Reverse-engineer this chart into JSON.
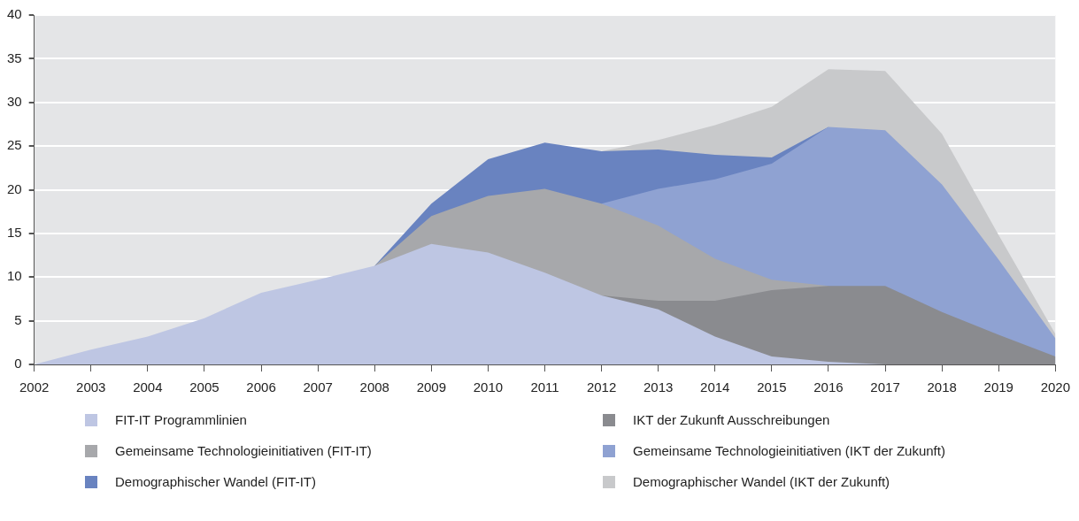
{
  "chart_data": {
    "type": "area",
    "stacked": true,
    "x": [
      2002,
      2003,
      2004,
      2005,
      2006,
      2007,
      2008,
      2009,
      2010,
      2011,
      2012,
      2013,
      2014,
      2015,
      2016,
      2017,
      2018,
      2019,
      2020
    ],
    "xlim": [
      2002,
      2020
    ],
    "xticks": [
      2002,
      2003,
      2004,
      2005,
      2006,
      2007,
      2008,
      2009,
      2010,
      2011,
      2012,
      2013,
      2014,
      2015,
      2016,
      2017,
      2018,
      2019,
      2020
    ],
    "ylim": [
      0,
      40
    ],
    "yticks": [
      0,
      5,
      10,
      15,
      20,
      25,
      30,
      35,
      40
    ],
    "grid": "y",
    "legend": "bottom",
    "series": [
      {
        "name": "FIT-IT Programmlinien",
        "color": "#bec6e3",
        "values": [
          0,
          1.7,
          3.2,
          5.3,
          8.2,
          9.7,
          11.3,
          13.8,
          12.8,
          10.5,
          7.9,
          6.3,
          3.2,
          0.9,
          0.3,
          0,
          null,
          null,
          null
        ]
      },
      {
        "name": "IKT der Zukunft Ausschreibungen",
        "color": "#8a8b8f",
        "values": [
          null,
          null,
          null,
          null,
          null,
          null,
          null,
          null,
          null,
          null,
          0,
          1.0,
          4.1,
          7.6,
          8.7,
          9.0,
          6.0,
          3.4,
          0.9
        ]
      },
      {
        "name": "Gemeinsame Technologieinitiativen (FIT-IT)",
        "color": "#a7a8ab",
        "values": [
          null,
          null,
          null,
          null,
          null,
          null,
          0,
          3.2,
          6.5,
          9.6,
          10.5,
          8.6,
          4.8,
          1.2,
          0,
          null,
          null,
          null,
          null
        ]
      },
      {
        "name": "Gemeinsame Technologieinitiativen (IKT der Zukunft)",
        "color": "#8fa2d2",
        "values": [
          null,
          null,
          null,
          null,
          null,
          null,
          null,
          null,
          null,
          null,
          0,
          4.2,
          9.1,
          13.3,
          18.2,
          17.8,
          14.6,
          8.6,
          2.1
        ]
      },
      {
        "name": "Demographischer Wandel (FIT-IT)",
        "color": "#6983c0",
        "values": [
          null,
          null,
          null,
          null,
          null,
          null,
          0,
          1.4,
          4.2,
          5.3,
          6.0,
          4.5,
          2.8,
          0.7,
          0,
          null,
          null,
          null,
          null
        ]
      },
      {
        "name": "Demographischer Wandel (IKT der Zukunft)",
        "color": "#c8c9cb",
        "values": [
          null,
          null,
          null,
          null,
          null,
          null,
          null,
          null,
          null,
          null,
          0,
          1.1,
          3.4,
          5.8,
          6.6,
          6.8,
          5.8,
          2.8,
          0.5
        ]
      }
    ]
  }
}
